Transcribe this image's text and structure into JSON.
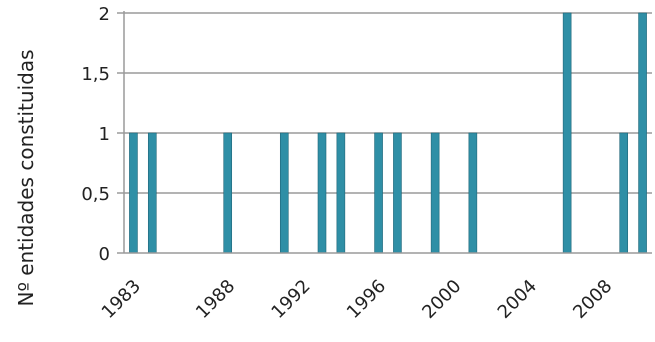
{
  "chart_data": {
    "type": "bar",
    "title": "",
    "xlabel": "",
    "ylabel": "Nº entidades constituidas",
    "ylim": [
      0,
      2
    ],
    "yticks": [
      "0",
      "0,5",
      "1",
      "1,5",
      "2"
    ],
    "xlim": [
      1982.5,
      2010.5
    ],
    "xticks": [
      "1983",
      "1988",
      "1992",
      "1996",
      "2000",
      "2004",
      "2008"
    ],
    "grid": true,
    "bar_color": "#2f8fa6",
    "bars": [
      {
        "year": 1983,
        "value": 1
      },
      {
        "year": 1984,
        "value": 1
      },
      {
        "year": 1988,
        "value": 1
      },
      {
        "year": 1991,
        "value": 1
      },
      {
        "year": 1993,
        "value": 1
      },
      {
        "year": 1994,
        "value": 1
      },
      {
        "year": 1996,
        "value": 1
      },
      {
        "year": 1997,
        "value": 1
      },
      {
        "year": 1999,
        "value": 1
      },
      {
        "year": 2001,
        "value": 1
      },
      {
        "year": 2006,
        "value": 2
      },
      {
        "year": 2009,
        "value": 1
      },
      {
        "year": 2010,
        "value": 2
      }
    ]
  }
}
